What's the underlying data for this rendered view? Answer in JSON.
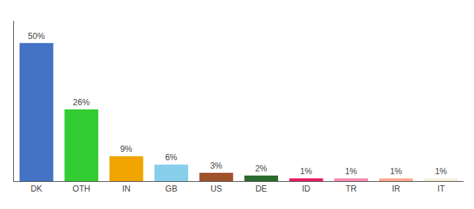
{
  "chart_data": {
    "type": "bar",
    "categories": [
      "DK",
      "OTH",
      "IN",
      "GB",
      "US",
      "DE",
      "ID",
      "TR",
      "IR",
      "IT"
    ],
    "values": [
      50,
      26,
      9,
      6,
      3,
      2,
      1,
      1,
      1,
      1
    ],
    "value_labels": [
      "50%",
      "26%",
      "9%",
      "6%",
      "3%",
      "2%",
      "1%",
      "1%",
      "1%",
      "1%"
    ],
    "colors": [
      "#4472C4",
      "#33CC33",
      "#F0A500",
      "#87CEEB",
      "#A0522D",
      "#2D6A2D",
      "#E91E63",
      "#F48FB1",
      "#FFAB91",
      "#F5F0DC"
    ],
    "ylim": [
      0,
      58
    ],
    "grid": false,
    "data_labels": true,
    "tick_labels": "x"
  }
}
